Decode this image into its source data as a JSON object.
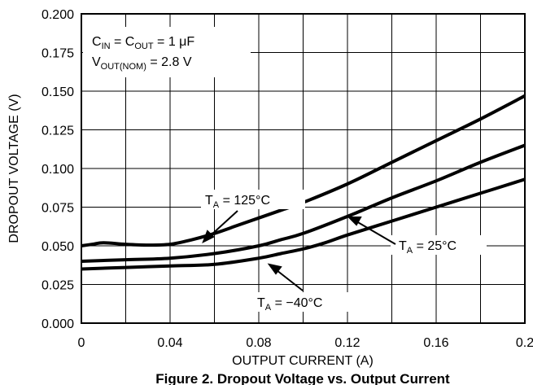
{
  "chart_data": {
    "type": "line",
    "xlabel": "OUTPUT CURRENT (A)",
    "ylabel": "DROPOUT VOLTAGE (V)",
    "xlim": [
      0,
      0.2
    ],
    "ylim": [
      0,
      0.2
    ],
    "x_ticks": [
      "0",
      "0.04",
      "0.08",
      "0.12",
      "0.16",
      "0.2"
    ],
    "y_ticks": [
      "0.000",
      "0.025",
      "0.050",
      "0.075",
      "0.100",
      "0.125",
      "0.150",
      "0.175",
      "0.200"
    ],
    "grid": true,
    "conditions": {
      "line1_a": "C",
      "line1_a_sub": "IN",
      "line1_b": " = C",
      "line1_b_sub": "OUT",
      "line1_c": " = 1 μF",
      "line2_a": "V",
      "line2_a_sub": "OUT(NOM)",
      "line2_b": " = 2.8 V"
    },
    "labels": {
      "t125": {
        "pre": "T",
        "sub": "A",
        "post": " = 125°C"
      },
      "t25": {
        "pre": "T",
        "sub": "A",
        "post": " = 25°C"
      },
      "tm40": {
        "pre": "T",
        "sub": "A",
        "post": " = −40°C"
      }
    },
    "caption": "Figure 2. Dropout Voltage vs. Output Current",
    "series": [
      {
        "key": "t125",
        "x": [
          0,
          0.005,
          0.01,
          0.02,
          0.03,
          0.04,
          0.05,
          0.06,
          0.07,
          0.08,
          0.09,
          0.1,
          0.12,
          0.14,
          0.16,
          0.18,
          0.2
        ],
        "values": [
          0.05,
          0.051,
          0.052,
          0.051,
          0.0505,
          0.051,
          0.054,
          0.058,
          0.063,
          0.068,
          0.073,
          0.078,
          0.09,
          0.104,
          0.118,
          0.132,
          0.147
        ]
      },
      {
        "key": "t25",
        "x": [
          0,
          0.02,
          0.04,
          0.06,
          0.08,
          0.09,
          0.1,
          0.12,
          0.14,
          0.16,
          0.18,
          0.2
        ],
        "values": [
          0.04,
          0.041,
          0.042,
          0.045,
          0.05,
          0.054,
          0.058,
          0.069,
          0.081,
          0.092,
          0.104,
          0.115
        ]
      },
      {
        "key": "tm40",
        "x": [
          0,
          0.02,
          0.04,
          0.06,
          0.08,
          0.09,
          0.1,
          0.11,
          0.12,
          0.14,
          0.16,
          0.18,
          0.2
        ],
        "values": [
          0.035,
          0.036,
          0.037,
          0.038,
          0.042,
          0.045,
          0.048,
          0.052,
          0.057,
          0.066,
          0.075,
          0.084,
          0.093
        ]
      }
    ]
  }
}
